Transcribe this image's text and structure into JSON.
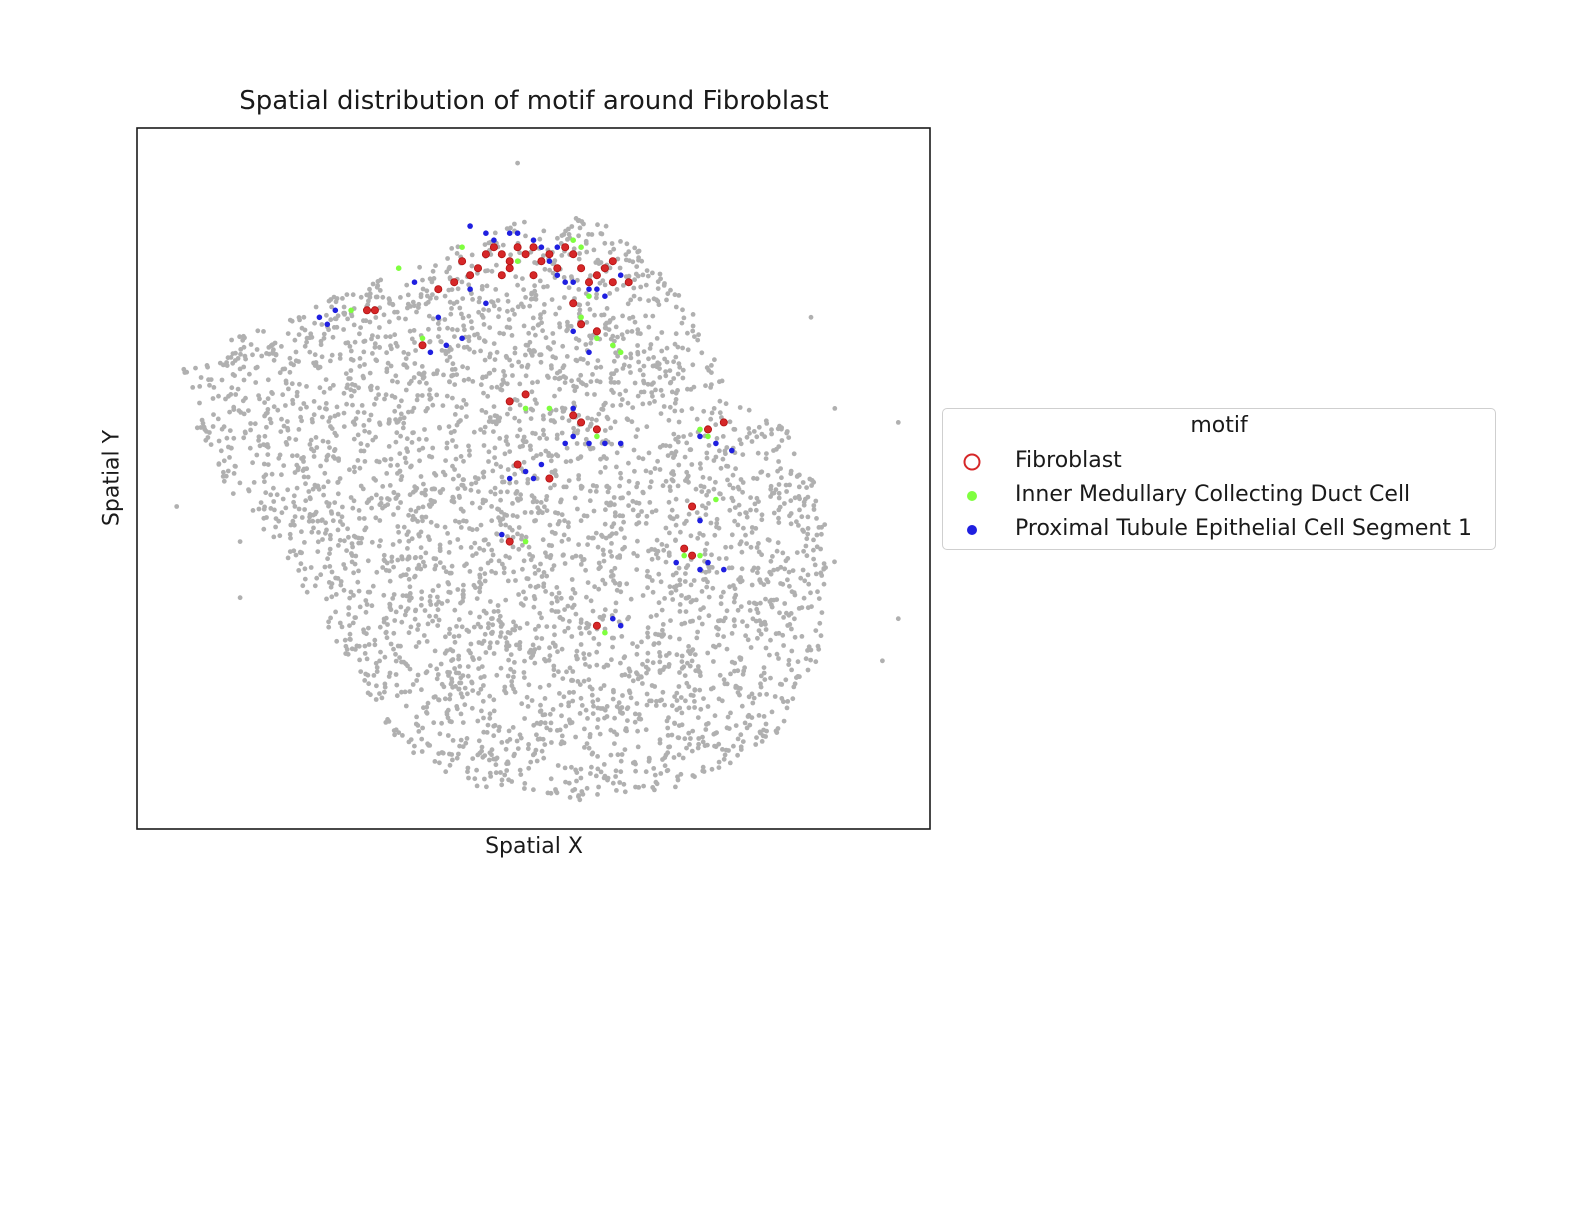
{
  "chart_data": {
    "type": "scatter",
    "title": "Spatial distribution of motif around Fibroblast",
    "xlabel": "Spatial X",
    "ylabel": "Spatial Y",
    "grid": false,
    "ticks": false,
    "legend": {
      "title": "motif",
      "placement": "outside-right",
      "entries": [
        {
          "name": "Fibroblast",
          "color": "#d62728",
          "marker": "hollow-circle"
        },
        {
          "name": "Inner Medullary Collecting Duct Cell",
          "color": "#7fff3f",
          "marker": "filled-circle"
        },
        {
          "name": "Proximal Tubule Epithelial Cell Segment 1",
          "color": "#1f1fe0",
          "marker": "filled-circle"
        }
      ]
    },
    "background_color": "#b0b0b0",
    "series": [
      {
        "name": "Fibroblast",
        "color": "#d62728",
        "points": [
          [
            0.41,
            0.81
          ],
          [
            0.42,
            0.79
          ],
          [
            0.44,
            0.82
          ],
          [
            0.45,
            0.83
          ],
          [
            0.46,
            0.82
          ],
          [
            0.47,
            0.81
          ],
          [
            0.48,
            0.83
          ],
          [
            0.47,
            0.8
          ],
          [
            0.49,
            0.82
          ],
          [
            0.5,
            0.83
          ],
          [
            0.51,
            0.81
          ],
          [
            0.5,
            0.79
          ],
          [
            0.52,
            0.82
          ],
          [
            0.54,
            0.83
          ],
          [
            0.55,
            0.82
          ],
          [
            0.56,
            0.8
          ],
          [
            0.57,
            0.78
          ],
          [
            0.58,
            0.79
          ],
          [
            0.59,
            0.8
          ],
          [
            0.6,
            0.78
          ],
          [
            0.4,
            0.78
          ],
          [
            0.38,
            0.77
          ],
          [
            0.43,
            0.8
          ],
          [
            0.46,
            0.79
          ],
          [
            0.53,
            0.8
          ],
          [
            0.55,
            0.75
          ],
          [
            0.56,
            0.72
          ],
          [
            0.58,
            0.71
          ],
          [
            0.29,
            0.74
          ],
          [
            0.3,
            0.74
          ],
          [
            0.36,
            0.69
          ],
          [
            0.47,
            0.61
          ],
          [
            0.49,
            0.62
          ],
          [
            0.55,
            0.59
          ],
          [
            0.56,
            0.58
          ],
          [
            0.58,
            0.57
          ],
          [
            0.52,
            0.5
          ],
          [
            0.72,
            0.57
          ],
          [
            0.74,
            0.58
          ],
          [
            0.7,
            0.46
          ],
          [
            0.69,
            0.4
          ],
          [
            0.7,
            0.39
          ],
          [
            0.47,
            0.41
          ],
          [
            0.58,
            0.29
          ],
          [
            0.6,
            0.81
          ],
          [
            0.62,
            0.78
          ],
          [
            0.48,
            0.52
          ]
        ]
      },
      {
        "name": "Inner Medullary Collecting Duct Cell",
        "color": "#7fff3f",
        "points": [
          [
            0.33,
            0.8
          ],
          [
            0.41,
            0.83
          ],
          [
            0.48,
            0.81
          ],
          [
            0.55,
            0.84
          ],
          [
            0.56,
            0.83
          ],
          [
            0.57,
            0.76
          ],
          [
            0.56,
            0.73
          ],
          [
            0.58,
            0.7
          ],
          [
            0.6,
            0.69
          ],
          [
            0.61,
            0.68
          ],
          [
            0.27,
            0.74
          ],
          [
            0.36,
            0.7
          ],
          [
            0.49,
            0.6
          ],
          [
            0.52,
            0.6
          ],
          [
            0.58,
            0.56
          ],
          [
            0.71,
            0.57
          ],
          [
            0.72,
            0.56
          ],
          [
            0.73,
            0.47
          ],
          [
            0.71,
            0.39
          ],
          [
            0.69,
            0.39
          ],
          [
            0.49,
            0.41
          ],
          [
            0.59,
            0.28
          ],
          [
            0.56,
            0.8
          ]
        ]
      },
      {
        "name": "Proximal Tubule Epithelial Cell Segment 1",
        "color": "#1f1fe0",
        "points": [
          [
            0.44,
            0.85
          ],
          [
            0.45,
            0.84
          ],
          [
            0.47,
            0.85
          ],
          [
            0.48,
            0.85
          ],
          [
            0.5,
            0.84
          ],
          [
            0.51,
            0.83
          ],
          [
            0.52,
            0.81
          ],
          [
            0.53,
            0.79
          ],
          [
            0.54,
            0.78
          ],
          [
            0.55,
            0.78
          ],
          [
            0.57,
            0.77
          ],
          [
            0.58,
            0.77
          ],
          [
            0.59,
            0.76
          ],
          [
            0.61,
            0.79
          ],
          [
            0.62,
            0.78
          ],
          [
            0.44,
            0.75
          ],
          [
            0.42,
            0.77
          ],
          [
            0.35,
            0.78
          ],
          [
            0.38,
            0.73
          ],
          [
            0.39,
            0.69
          ],
          [
            0.41,
            0.7
          ],
          [
            0.37,
            0.68
          ],
          [
            0.23,
            0.73
          ],
          [
            0.25,
            0.74
          ],
          [
            0.24,
            0.72
          ],
          [
            0.55,
            0.71
          ],
          [
            0.57,
            0.68
          ],
          [
            0.54,
            0.55
          ],
          [
            0.55,
            0.56
          ],
          [
            0.57,
            0.55
          ],
          [
            0.59,
            0.55
          ],
          [
            0.61,
            0.55
          ],
          [
            0.55,
            0.6
          ],
          [
            0.51,
            0.52
          ],
          [
            0.5,
            0.5
          ],
          [
            0.47,
            0.5
          ],
          [
            0.71,
            0.56
          ],
          [
            0.73,
            0.55
          ],
          [
            0.75,
            0.54
          ],
          [
            0.71,
            0.44
          ],
          [
            0.72,
            0.38
          ],
          [
            0.74,
            0.37
          ],
          [
            0.71,
            0.37
          ],
          [
            0.68,
            0.38
          ],
          [
            0.49,
            0.51
          ],
          [
            0.46,
            0.42
          ],
          [
            0.61,
            0.29
          ],
          [
            0.6,
            0.3
          ],
          [
            0.42,
            0.86
          ],
          [
            0.53,
            0.83
          ]
        ]
      }
    ]
  }
}
